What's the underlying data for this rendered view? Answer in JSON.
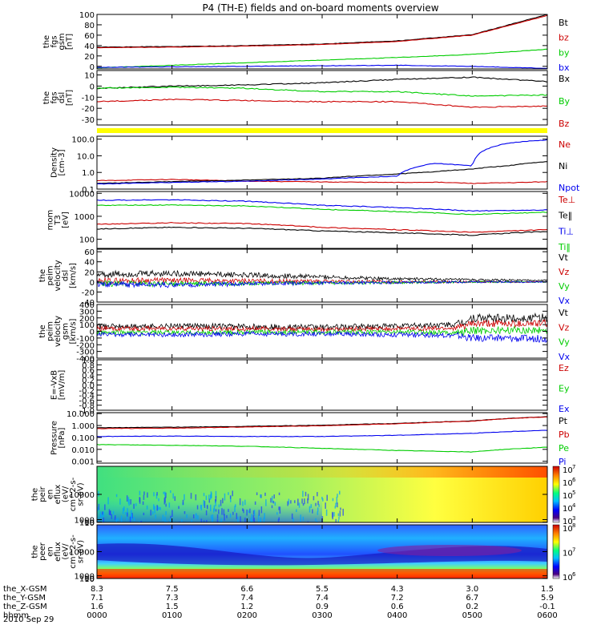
{
  "title": "P4 (TH-E) fields and on-board moments overview",
  "date_label": "2010 Sep 29",
  "orbit_rows": [
    {
      "label": "the_X-GSM",
      "values": [
        "8.3",
        "7.5",
        "6.6",
        "5.5",
        "4.3",
        "3.0",
        "1.5"
      ]
    },
    {
      "label": "the_Y-GSM",
      "values": [
        "7.1",
        "7.3",
        "7.4",
        "7.4",
        "7.2",
        "6.7",
        "5.9"
      ]
    },
    {
      "label": "the_Z-GSM",
      "values": [
        "1.6",
        "1.5",
        "1.2",
        "0.9",
        "0.6",
        "0.2",
        "-0.1"
      ]
    },
    {
      "label": "hhmm",
      "values": [
        "0000",
        "0100",
        "0200",
        "0300",
        "0400",
        "0500",
        "0600"
      ]
    }
  ],
  "colors": {
    "black": "#000000",
    "red": "#cc0000",
    "green": "#00cc00",
    "blue": "#0000ee",
    "yellow": "#ffff00"
  },
  "chart_data": [
    {
      "id": "fgs_gsm",
      "type": "line",
      "ylabel": [
        "the",
        "fgs",
        "gsm",
        "[nT]"
      ],
      "ylim": [
        -5,
        100
      ],
      "yticks": [
        {
          "v": 0,
          "t": "0"
        },
        {
          "v": 20,
          "t": "20"
        },
        {
          "v": 40,
          "t": "40"
        },
        {
          "v": 60,
          "t": "60"
        },
        {
          "v": 80,
          "t": "80"
        },
        {
          "v": 100,
          "t": "100"
        }
      ],
      "x_hours": [
        0,
        1,
        2,
        3,
        4,
        5,
        6
      ],
      "series": [
        {
          "name": "Bt",
          "color": "black",
          "values": [
            37,
            38,
            40,
            43,
            49,
            61,
            100
          ]
        },
        {
          "name": "bz",
          "color": "red",
          "values": [
            36,
            37,
            39,
            42,
            48,
            60,
            98
          ]
        },
        {
          "name": "by",
          "color": "green",
          "values": [
            -3,
            2,
            7,
            12,
            17,
            23,
            33
          ]
        },
        {
          "name": "bx",
          "color": "blue",
          "values": [
            -2,
            -1,
            0,
            1,
            2,
            0,
            -4
          ]
        }
      ]
    },
    {
      "id": "fgs_dsl",
      "type": "line",
      "ylabel": [
        "the",
        "fgs",
        "dsl",
        "[nT]"
      ],
      "ylim": [
        -35,
        14
      ],
      "yticks": [
        {
          "v": 10,
          "t": "10"
        },
        {
          "v": 0,
          "t": "0"
        },
        {
          "v": -10,
          "t": "-10"
        },
        {
          "v": -20,
          "t": "-20"
        },
        {
          "v": -30,
          "t": "-30"
        }
      ],
      "x_hours": [
        0,
        1,
        2,
        3,
        4,
        5,
        6
      ],
      "series": [
        {
          "name": "Bx",
          "color": "black",
          "values": [
            -2,
            0,
            1,
            3,
            6,
            8,
            4
          ]
        },
        {
          "name": "By",
          "color": "green",
          "values": [
            -2,
            -1,
            -2,
            -5,
            -5,
            -9,
            -8
          ]
        },
        {
          "name": "Bz",
          "color": "red",
          "values": [
            -14,
            -12,
            -13,
            -14,
            -14,
            -19,
            -18
          ]
        }
      ]
    },
    {
      "id": "density",
      "type": "line",
      "log": true,
      "ylabel": [
        "Density",
        "[cm-3]"
      ],
      "ylim": [
        0.1,
        150
      ],
      "yticks": [
        {
          "v": 0.1,
          "t": "0.1"
        },
        {
          "v": 1,
          "t": "1.0"
        },
        {
          "v": 10,
          "t": "10.0"
        },
        {
          "v": 100,
          "t": "100.0"
        }
      ],
      "x_hours": [
        0,
        1,
        2,
        3,
        4,
        4.5,
        5,
        5.5,
        6
      ],
      "series": [
        {
          "name": "Ne",
          "color": "red",
          "values": [
            0.32,
            0.38,
            0.3,
            0.27,
            0.25,
            0.26,
            0.22,
            0.24,
            0.28
          ]
        },
        {
          "name": "Ni",
          "color": "black",
          "values": [
            0.22,
            0.28,
            0.35,
            0.45,
            0.8,
            1.1,
            1.6,
            2.6,
            4.5
          ]
        },
        {
          "name": "Npot",
          "color": "blue",
          "values": [
            0.2,
            0.25,
            0.3,
            0.4,
            0.6,
            3.5,
            2.5,
            60,
            90
          ]
        }
      ]
    },
    {
      "id": "temperature",
      "type": "line",
      "log": true,
      "ylabel": [
        "mom",
        "T3",
        "[eV]"
      ],
      "ylim": [
        40,
        12000
      ],
      "yticks": [
        {
          "v": 100,
          "t": "100"
        },
        {
          "v": 1000,
          "t": "1000"
        },
        {
          "v": 10000,
          "t": "10000"
        }
      ],
      "x_hours": [
        0,
        1,
        2,
        3,
        4,
        5,
        6
      ],
      "series": [
        {
          "name": "Te⊥",
          "color": "red",
          "values": [
            450,
            520,
            480,
            330,
            260,
            200,
            260
          ]
        },
        {
          "name": "Te‖",
          "color": "black",
          "values": [
            280,
            330,
            300,
            230,
            190,
            150,
            220
          ]
        },
        {
          "name": "Ti⊥",
          "color": "blue",
          "values": [
            5000,
            5200,
            4500,
            3000,
            2400,
            1700,
            1900
          ]
        },
        {
          "name": "Ti‖",
          "color": "green",
          "values": [
            3000,
            3100,
            2800,
            2000,
            1600,
            1200,
            1500
          ]
        }
      ]
    },
    {
      "id": "peim_vel_dsl",
      "type": "line",
      "ylabel": [
        "the",
        "peim",
        "velocity",
        "dsl",
        "[km/s]"
      ],
      "ylim": [
        -40,
        65
      ],
      "yticks": [
        {
          "v": -40,
          "t": "-40"
        },
        {
          "v": -20,
          "t": "-20"
        },
        {
          "v": 0,
          "t": "0"
        },
        {
          "v": 20,
          "t": "20"
        },
        {
          "v": 40,
          "t": "40"
        },
        {
          "v": 60,
          "t": "60"
        }
      ],
      "x_hours": [
        0,
        1,
        2,
        3,
        4,
        5,
        6
      ],
      "series": [
        {
          "name": "Vt",
          "color": "black",
          "values": [
            15,
            17,
            14,
            10,
            6,
            4,
            3
          ]
        },
        {
          "name": "Vz",
          "color": "red",
          "values": [
            2,
            3,
            2,
            1,
            0,
            0,
            0
          ]
        },
        {
          "name": "Vy",
          "color": "green",
          "values": [
            -3,
            -4,
            -3,
            -2,
            -1,
            0,
            0
          ]
        },
        {
          "name": "Vx",
          "color": "blue",
          "values": [
            -5,
            -6,
            -4,
            -2,
            -1,
            0,
            0
          ]
        }
      ]
    },
    {
      "id": "peim_vel_gsm",
      "type": "line",
      "ylabel": [
        "the",
        "peim",
        "velocity",
        "gsm",
        "[km/s]"
      ],
      "ylim": [
        -400,
        400
      ],
      "yticks": [
        {
          "v": 400,
          "t": "400"
        },
        {
          "v": 300,
          "t": "300"
        },
        {
          "v": 200,
          "t": "200"
        },
        {
          "v": 100,
          "t": "100"
        },
        {
          "v": 0,
          "t": "0"
        },
        {
          "v": -100,
          "t": "-100"
        },
        {
          "v": -200,
          "t": "-200"
        },
        {
          "v": -300,
          "t": "-300"
        },
        {
          "v": -400,
          "t": "-400"
        }
      ],
      "x_hours": [
        0,
        1,
        2,
        3,
        4,
        4.8,
        5,
        6
      ],
      "series": [
        {
          "name": "Vt",
          "color": "black",
          "values": [
            70,
            80,
            70,
            60,
            80,
            100,
            190,
            200
          ]
        },
        {
          "name": "Vz",
          "color": "red",
          "values": [
            40,
            40,
            40,
            30,
            40,
            50,
            110,
            120
          ]
        },
        {
          "name": "Vy",
          "color": "green",
          "values": [
            -20,
            -20,
            -15,
            -10,
            -10,
            -20,
            10,
            20
          ]
        },
        {
          "name": "Vx",
          "color": "blue",
          "values": [
            -50,
            -50,
            -40,
            -40,
            -50,
            -60,
            -100,
            -110
          ]
        }
      ]
    },
    {
      "id": "efield",
      "type": "line",
      "ylabel": [
        "E=-VxB",
        "[mV/m]"
      ],
      "ylim": [
        -1,
        1
      ],
      "yticks": [
        {
          "v": -1,
          "t": "-1.0"
        },
        {
          "v": -0.8,
          "t": "-0.8"
        },
        {
          "v": -0.6,
          "t": "-0.6"
        },
        {
          "v": -0.4,
          "t": "-0.4"
        },
        {
          "v": -0.2,
          "t": "-0.2"
        },
        {
          "v": 0,
          "t": "0.0"
        },
        {
          "v": 0.2,
          "t": "0.2"
        },
        {
          "v": 0.4,
          "t": "0.4"
        },
        {
          "v": 0.6,
          "t": "0.6"
        },
        {
          "v": 0.8,
          "t": "0.8"
        },
        {
          "v": 1,
          "t": "1.0"
        }
      ],
      "series": [
        {
          "name": "Ez",
          "color": "red",
          "values": []
        },
        {
          "name": "Ey",
          "color": "green",
          "values": []
        },
        {
          "name": "Ex",
          "color": "blue",
          "values": []
        }
      ]
    },
    {
      "id": "pressure",
      "type": "line",
      "log": true,
      "ylabel": [
        "Pressure",
        "[nPa]"
      ],
      "ylim": [
        0.0007,
        12
      ],
      "yticks": [
        {
          "v": 0.001,
          "t": "0.001"
        },
        {
          "v": 0.01,
          "t": "0.010"
        },
        {
          "v": 0.1,
          "t": "0.100"
        },
        {
          "v": 1,
          "t": "1.000"
        },
        {
          "v": 10,
          "t": "10.000"
        }
      ],
      "x_hours": [
        0,
        1,
        2,
        3,
        4,
        5,
        6
      ],
      "series": [
        {
          "name": "Pt",
          "color": "black",
          "values": [
            0.65,
            0.72,
            0.85,
            1.05,
            1.5,
            2.4,
            5.5
          ]
        },
        {
          "name": "Pb",
          "color": "red",
          "values": [
            0.55,
            0.6,
            0.75,
            0.95,
            1.4,
            2.3,
            5.3
          ]
        },
        {
          "name": "Pe",
          "color": "green",
          "values": [
            0.025,
            0.022,
            0.018,
            0.012,
            0.008,
            0.006,
            0.015
          ]
        },
        {
          "name": "Pi",
          "color": "blue",
          "values": [
            0.12,
            0.13,
            0.12,
            0.12,
            0.15,
            0.22,
            0.4
          ]
        }
      ]
    },
    {
      "id": "peir_en_eflux",
      "type": "heatmap",
      "ylabel": [
        "the",
        "peir",
        "en",
        "eflux",
        "(eV/",
        "cm^2-s-",
        "sr-eV)"
      ],
      "ylim": [
        6,
        20000
      ],
      "yticks": [
        {
          "v": 10,
          "t": "10"
        },
        {
          "v": 100,
          "t": "100"
        },
        {
          "v": 1000,
          "t": "1000"
        },
        {
          "v": 10000,
          "t": "10000"
        }
      ],
      "colorbar": {
        "min_exp": 3,
        "max_exp": 7,
        "ticks": [
          "10",
          "10",
          "10",
          "10",
          "10"
        ],
        "exponents": [
          "7",
          "6",
          "5",
          "4",
          "3"
        ]
      }
    },
    {
      "id": "peer_en_eflux",
      "type": "heatmap",
      "ylabel": [
        "the",
        "peer",
        "en",
        "eflux",
        "(eV/",
        "cm^2-s-",
        "sr-eV)"
      ],
      "ylim": [
        6,
        20000
      ],
      "yticks": [
        {
          "v": 10,
          "t": "10"
        },
        {
          "v": 100,
          "t": "100"
        },
        {
          "v": 1000,
          "t": "1000"
        },
        {
          "v": 10000,
          "t": "10000"
        }
      ],
      "colorbar": {
        "min_exp": 5.5,
        "max_exp": 8,
        "ticks": [
          "10",
          "10",
          "10"
        ],
        "exponents": [
          "8",
          "7",
          "6"
        ]
      }
    }
  ]
}
